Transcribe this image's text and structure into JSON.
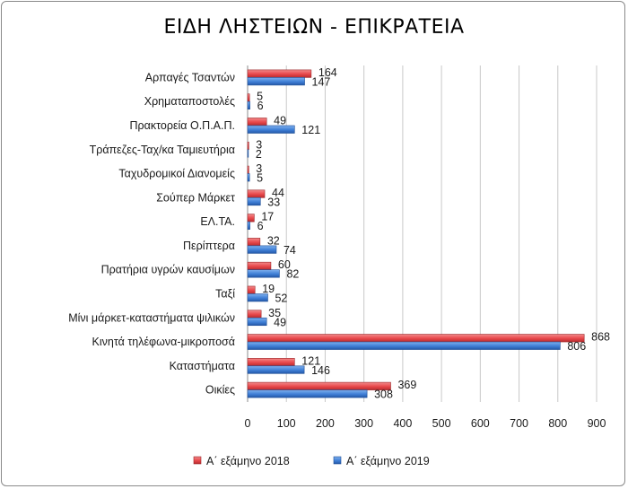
{
  "chart_data": {
    "type": "bar",
    "orientation": "horizontal",
    "title": "ΕΙΔΗ ΛΗΣΤΕΙΩΝ - ΕΠΙΚΡΑΤΕΙΑ",
    "categories": [
      "Αρπαγές Τσαντών",
      "Χρηματαποστολές",
      "Πρακτορεία Ο.Π.Α.Π.",
      "Τράπεζες-Ταχ/κα Ταμιευτήρια",
      "Ταχυδρομικοί Διανομείς",
      "Σούπερ Μάρκετ",
      "ΕΛ.ΤΑ.",
      "Περίπτερα",
      "Πρατήρια υγρών καυσίμων",
      "Ταξί",
      "Μίνι μάρκετ-καταστήματα  ψιλικών",
      "Κινητά τηλέφωνα-μικροποσά",
      "Καταστήματα",
      "Οικίες"
    ],
    "series": [
      {
        "name": "Α΄ εξάμηνο 2018",
        "color": "#e8474a",
        "values": [
          164,
          5,
          49,
          3,
          3,
          44,
          17,
          32,
          60,
          19,
          35,
          868,
          121,
          369
        ]
      },
      {
        "name": "Α΄ εξάμηνο 2019",
        "color": "#3f7fd6",
        "values": [
          147,
          6,
          121,
          2,
          5,
          33,
          6,
          74,
          82,
          52,
          49,
          806,
          146,
          308
        ]
      }
    ],
    "x_ticks": [
      "0",
      "100",
      "200",
      "300",
      "400",
      "500",
      "600",
      "700",
      "800",
      "900"
    ],
    "xlim": [
      0,
      900
    ],
    "grid": true,
    "legend_position": "bottom"
  }
}
